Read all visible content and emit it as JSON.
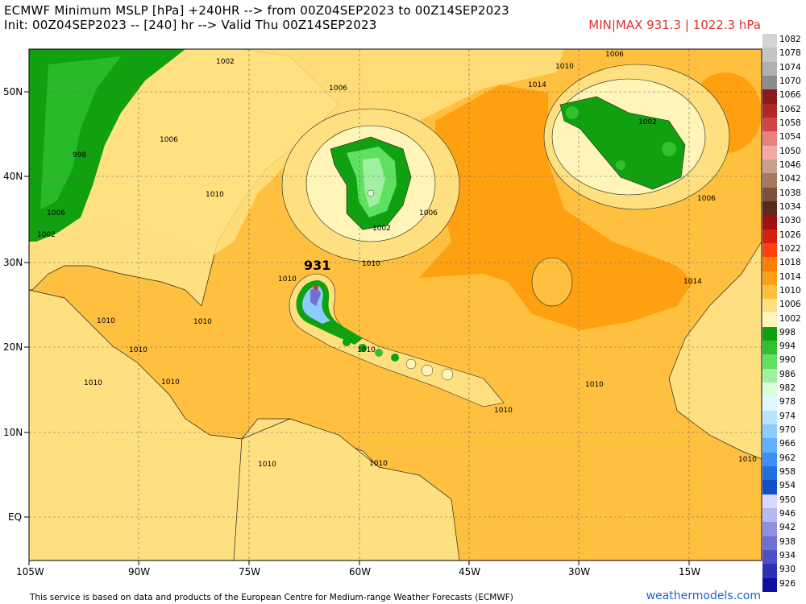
{
  "header": {
    "title_line1": "ECMWF Minimum MSLP [hPa] +240HR --> from 00Z04SEP2023 to 00Z14SEP2023",
    "title_line2": "Init: 00Z04SEP2023 -- [240] hr --> Valid Thu 00Z14SEP2023",
    "minmax": "MIN|MAX 931.3 | 1022.3 hPa"
  },
  "axes": {
    "lat_labels": [
      "50N",
      "40N",
      "30N",
      "20N",
      "10N",
      "EQ"
    ],
    "lon_labels": [
      "105W",
      "90W",
      "75W",
      "60W",
      "45W",
      "30W",
      "15W"
    ]
  },
  "map": {
    "storm_min_label": "931",
    "contour_labels": [
      "1002",
      "1006",
      "1006",
      "1010",
      "1010",
      "998",
      "1002",
      "1006",
      "1010",
      "1014",
      "1010",
      "1006",
      "1002",
      "1010",
      "1010",
      "1006",
      "1002",
      "1006",
      "1014",
      "1010",
      "1010",
      "1010",
      "1010",
      "1010",
      "1010",
      "1010",
      "1010",
      "1010"
    ]
  },
  "legend": {
    "levels": [
      {
        "v": "1082",
        "c": "#d4d4d4"
      },
      {
        "v": "1078",
        "c": "#c4c4c4"
      },
      {
        "v": "1074",
        "c": "#b0b0b0"
      },
      {
        "v": "1070",
        "c": "#8c8c8c"
      },
      {
        "v": "1066",
        "c": "#8b1a1a"
      },
      {
        "v": "1062",
        "c": "#b02828"
      },
      {
        "v": "1058",
        "c": "#d04545"
      },
      {
        "v": "1054",
        "c": "#e88080"
      },
      {
        "v": "1050",
        "c": "#f4a9a9"
      },
      {
        "v": "1046",
        "c": "#c8a090"
      },
      {
        "v": "1042",
        "c": "#a87860"
      },
      {
        "v": "1038",
        "c": "#7a5040"
      },
      {
        "v": "1034",
        "c": "#5a2a1a"
      },
      {
        "v": "1030",
        "c": "#a01010"
      },
      {
        "v": "1026",
        "c": "#d82010"
      },
      {
        "v": "1022",
        "c": "#ff4010"
      },
      {
        "v": "1018",
        "c": "#ff8000"
      },
      {
        "v": "1014",
        "c": "#ffa010"
      },
      {
        "v": "1010",
        "c": "#ffc040"
      },
      {
        "v": "1006",
        "c": "#ffe080"
      },
      {
        "v": "1002",
        "c": "#fff5b8"
      },
      {
        "v": "998",
        "c": "#10a010"
      },
      {
        "v": "994",
        "c": "#30c030"
      },
      {
        "v": "990",
        "c": "#60e060"
      },
      {
        "v": "986",
        "c": "#a0f0a0"
      },
      {
        "v": "982",
        "c": "#d8ffd8"
      },
      {
        "v": "978",
        "c": "#e0f8ff"
      },
      {
        "v": "974",
        "c": "#b8e4ff"
      },
      {
        "v": "970",
        "c": "#8cccff"
      },
      {
        "v": "966",
        "c": "#60b0ff"
      },
      {
        "v": "962",
        "c": "#3c90f0"
      },
      {
        "v": "958",
        "c": "#2070e0"
      },
      {
        "v": "954",
        "c": "#1050c0"
      },
      {
        "v": "950",
        "c": "#d8d8ff"
      },
      {
        "v": "946",
        "c": "#b8b8f0"
      },
      {
        "v": "942",
        "c": "#9090e0"
      },
      {
        "v": "938",
        "c": "#7070d0"
      },
      {
        "v": "934",
        "c": "#5050c0"
      },
      {
        "v": "930",
        "c": "#3030b0"
      },
      {
        "v": "926",
        "c": "#1010a0"
      }
    ]
  },
  "footer": {
    "credit": "This service is based on data and products of the European Centre for Medium-range Weather Forecasts (ECMWF)",
    "brand": "weathermodels.com"
  }
}
